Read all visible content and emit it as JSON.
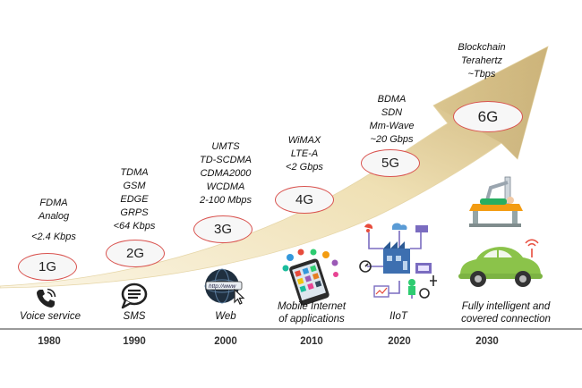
{
  "generations": [
    {
      "id": "1g",
      "label": "1G",
      "tech": [
        "FDMA",
        "Analog",
        "",
        "<2.4 Kbps"
      ],
      "caption": [
        "Voice service"
      ],
      "year": "1980"
    },
    {
      "id": "2g",
      "label": "2G",
      "tech": [
        "TDMA",
        "GSM",
        "EDGE",
        "GRPS",
        "<64 Kbps"
      ],
      "caption": [
        "SMS"
      ],
      "year": "1990"
    },
    {
      "id": "3g",
      "label": "3G",
      "tech": [
        "UMTS",
        "TD-SCDMA",
        "CDMA2000",
        "WCDMA",
        "2-100 Mbps"
      ],
      "caption": [
        "Web"
      ],
      "year": "2000"
    },
    {
      "id": "4g",
      "label": "4G",
      "tech": [
        "WiMAX",
        "LTE-A",
        "<2 Gbps"
      ],
      "caption": [
        "Mobile Internet",
        "of applications"
      ],
      "year": "2010"
    },
    {
      "id": "5g",
      "label": "5G",
      "tech": [
        "BDMA",
        "SDN",
        "Mm-Wave",
        "~20 Gbps"
      ],
      "caption": [
        "IIoT"
      ],
      "year": "2020"
    },
    {
      "id": "6g",
      "label": "6G",
      "tech": [
        "Blockchain",
        "Terahertz",
        "~Tbps"
      ],
      "caption": [
        "Fully intelligent and",
        "covered connection"
      ],
      "year": "2030"
    }
  ],
  "colors": {
    "arrow_light": "#faf1d6",
    "arrow_dark": "#c9b27a",
    "oval_border": "#d9534f",
    "car": "#8bc34a",
    "timeline": "#9a9a9a"
  },
  "icons": [
    "phone-icon",
    "sms-bubble-icon",
    "web-globe-icon",
    "smartphone-apps-icon",
    "iiot-network-icon",
    "smart-car-icon",
    "surgical-robot-icon"
  ]
}
